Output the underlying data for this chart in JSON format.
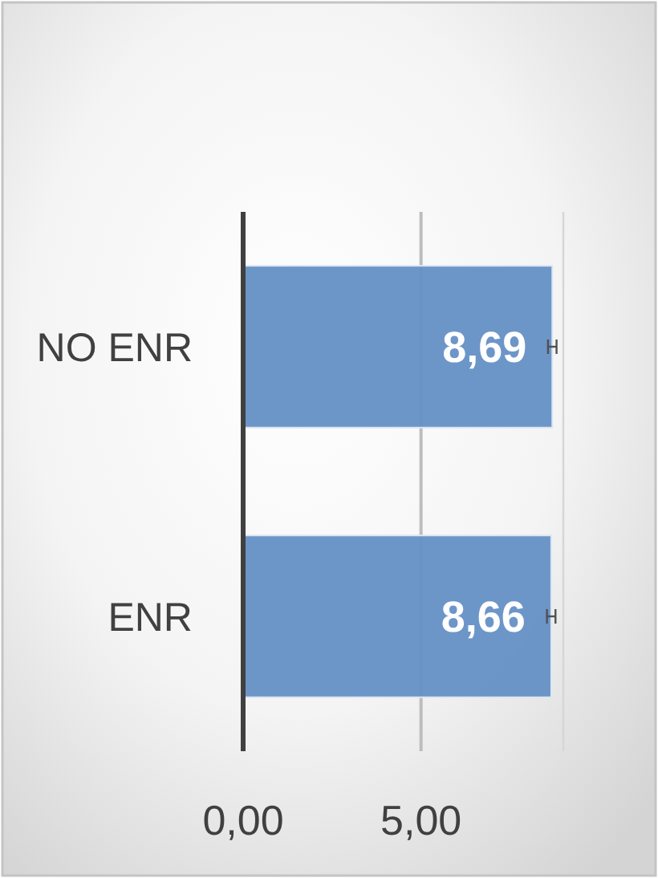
{
  "chart_data": {
    "type": "bar",
    "orientation": "horizontal",
    "categories": [
      "NO ENR",
      "ENR"
    ],
    "values": [
      8.69,
      8.66
    ],
    "color": "#6590c5",
    "errors": [
      0.12,
      0.12
    ],
    "value_labels": [
      "8,69",
      "8,66"
    ],
    "xlim": [
      0,
      9
    ],
    "xticks": [
      {
        "value": 0,
        "label": "0,00"
      },
      {
        "value": 5,
        "label": "5,00"
      }
    ],
    "grid": "x"
  }
}
